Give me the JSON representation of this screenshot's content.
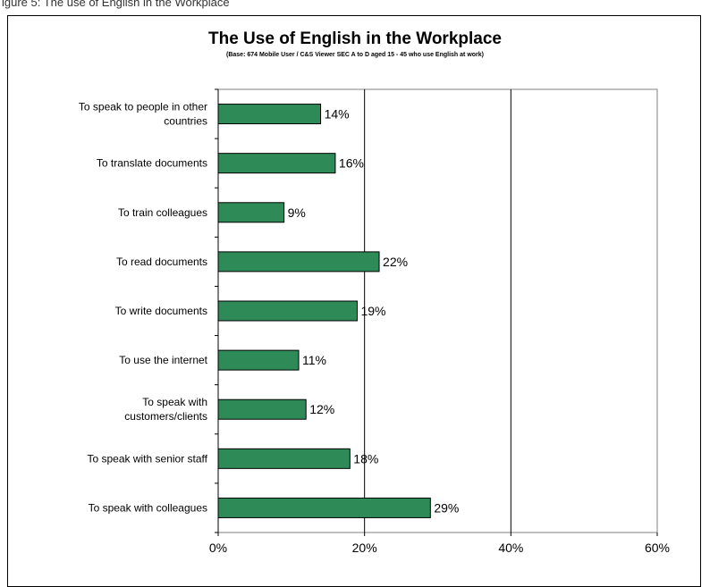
{
  "page": {
    "caption": "igure 5: The use of English in the Workplace"
  },
  "colors": {
    "bar_fill": "#2e8b57",
    "bar_stroke": "#000000",
    "gridline": "#000000",
    "plot_border": "#808080",
    "background": "#ffffff"
  },
  "chart_data": {
    "type": "bar",
    "orientation": "horizontal",
    "title": "The Use of English in the Workplace",
    "subtitle": "(Base: 674 Mobile User / C&S Viewer SEC A to D aged 15 - 45 who use English at work)",
    "categories": [
      "To speak to people in other countries",
      "To translate documents",
      "To train colleagues",
      "To read documents",
      "To write documents",
      "To use the internet",
      "To speak with customers/clients",
      "To speak with senior staff",
      "To speak with colleagues"
    ],
    "category_lines": [
      [
        "To speak to people in other",
        "countries"
      ],
      [
        "To translate documents"
      ],
      [
        "To train colleagues"
      ],
      [
        "To read documents"
      ],
      [
        "To write documents"
      ],
      [
        "To use the internet"
      ],
      [
        "To speak with",
        "customers/clients"
      ],
      [
        "To speak with senior staff"
      ],
      [
        "To speak with colleagues"
      ]
    ],
    "values": [
      14,
      16,
      9,
      22,
      19,
      11,
      12,
      18,
      29
    ],
    "data_labels": [
      "14%",
      "16%",
      "9%",
      "22%",
      "19%",
      "11%",
      "12%",
      "18%",
      "29%"
    ],
    "xlim": [
      0,
      60
    ],
    "xticks": [
      0,
      20,
      40,
      60
    ],
    "xtick_labels": [
      "0%",
      "20%",
      "40%",
      "60%"
    ],
    "xlabel": "",
    "ylabel": "",
    "grid": true,
    "legend": "none"
  }
}
